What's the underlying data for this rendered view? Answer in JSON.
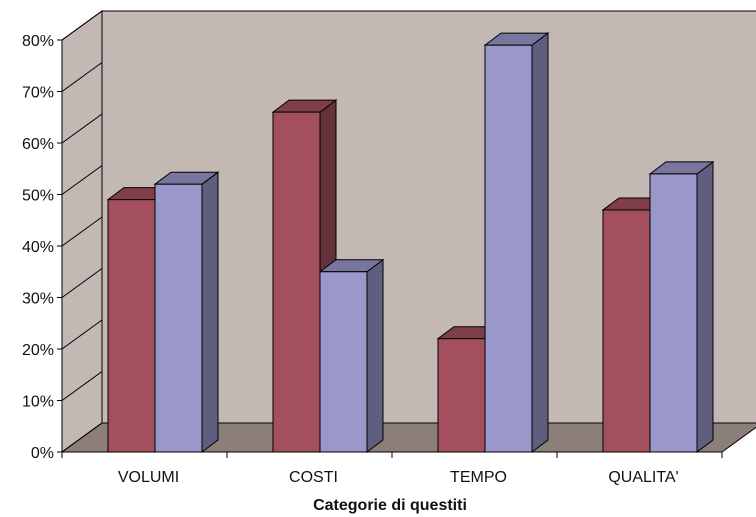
{
  "chart_data": {
    "type": "bar",
    "title": "",
    "xlabel": "Categorie di questiti",
    "ylabel": "",
    "categories": [
      "VOLUMI",
      "COSTI",
      "TEMPO",
      "QUALITA'"
    ],
    "series": [
      {
        "values": [
          49,
          66,
          22,
          47
        ],
        "color": "#a34f5e"
      },
      {
        "values": [
          52,
          35,
          79,
          54
        ],
        "color": "#9a97cb"
      }
    ],
    "ylim": [
      0,
      80
    ],
    "yticks": [
      0,
      10,
      20,
      30,
      40,
      50,
      60,
      70,
      80
    ],
    "ytick_labels": [
      "0%",
      "10%",
      "20%",
      "30%",
      "40%",
      "50%",
      "60%",
      "70%",
      "80%"
    ],
    "grid": false,
    "legend": "none",
    "style": "3d-clustered-column",
    "colors": {
      "back_wall": "#c3b8b3",
      "floor": "#8c7f7a",
      "edge": "#000000"
    }
  }
}
